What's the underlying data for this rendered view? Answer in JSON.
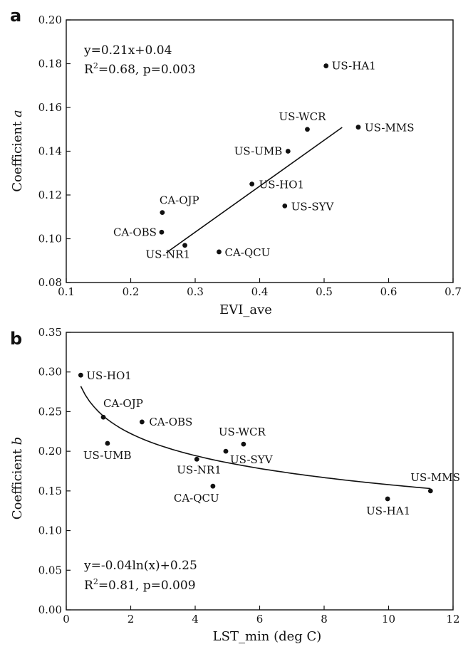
{
  "chart_data": [
    {
      "panel": "a",
      "type": "scatter",
      "xlabel": "EVI_ave",
      "ylabel_prefix": "Coefficient ",
      "ylabel_var": "a",
      "xlim": [
        0.1,
        0.7
      ],
      "ylim": [
        0.08,
        0.2
      ],
      "xticks": [
        "0.1",
        "0.2",
        "0.3",
        "0.4",
        "0.5",
        "0.6",
        "0.7"
      ],
      "yticks": [
        "0.08",
        "0.10",
        "0.12",
        "0.14",
        "0.16",
        "0.18",
        "0.20"
      ],
      "grid": false,
      "points": [
        {
          "label": "US-HA1",
          "x": 0.503,
          "y": 0.179
        },
        {
          "label": "US-WCR",
          "x": 0.474,
          "y": 0.15
        },
        {
          "label": "US-MMS",
          "x": 0.553,
          "y": 0.151
        },
        {
          "label": "US-UMB",
          "x": 0.444,
          "y": 0.14
        },
        {
          "label": "US-HO1",
          "x": 0.388,
          "y": 0.125
        },
        {
          "label": "US-SYV",
          "x": 0.439,
          "y": 0.115
        },
        {
          "label": "CA-OJP",
          "x": 0.249,
          "y": 0.112
        },
        {
          "label": "CA-OBS",
          "x": 0.248,
          "y": 0.103
        },
        {
          "label": "US-NR1",
          "x": 0.284,
          "y": 0.097
        },
        {
          "label": "CA-QCU",
          "x": 0.337,
          "y": 0.094
        }
      ],
      "fit": {
        "type": "linear",
        "slope": 0.21,
        "intercept": 0.04,
        "x_range": [
          0.255,
          0.528
        ]
      },
      "equation": "y=0.21x+0.04",
      "stats_r": "R",
      "stats_sup": "2",
      "stats_rest": "=0.68, p=0.003"
    },
    {
      "panel": "b",
      "type": "scatter",
      "xlabel": "LST_min (deg C)",
      "ylabel_prefix": "Coefficient ",
      "ylabel_var": "b",
      "xlim": [
        0,
        12
      ],
      "ylim": [
        0.0,
        0.35
      ],
      "xticks": [
        "0",
        "2",
        "4",
        "6",
        "8",
        "10",
        "12"
      ],
      "yticks": [
        "0.00",
        "0.05",
        "0.10",
        "0.15",
        "0.20",
        "0.25",
        "0.30",
        "0.35"
      ],
      "grid": false,
      "points": [
        {
          "label": "US-HO1",
          "x": 0.45,
          "y": 0.296
        },
        {
          "label": "CA-OJP",
          "x": 1.15,
          "y": 0.243
        },
        {
          "label": "US-UMB",
          "x": 1.28,
          "y": 0.21
        },
        {
          "label": "CA-OBS",
          "x": 2.35,
          "y": 0.237
        },
        {
          "label": "US-NR1",
          "x": 4.05,
          "y": 0.19
        },
        {
          "label": "CA-QCU",
          "x": 4.55,
          "y": 0.156
        },
        {
          "label": "US-WCR",
          "x": 5.5,
          "y": 0.209
        },
        {
          "label": "US-SYV",
          "x": 4.95,
          "y": 0.2
        },
        {
          "label": "US-HA1",
          "x": 9.97,
          "y": 0.14
        },
        {
          "label": "US-MMS",
          "x": 11.3,
          "y": 0.15
        }
      ],
      "fit": {
        "type": "log",
        "a": -0.04,
        "b": 0.25,
        "x_range": [
          0.45,
          11.3
        ]
      },
      "equation": "y=-0.04ln(x)+0.25",
      "stats_r": "R",
      "stats_sup": "2",
      "stats_rest": "=0.81, p=0.009"
    }
  ]
}
